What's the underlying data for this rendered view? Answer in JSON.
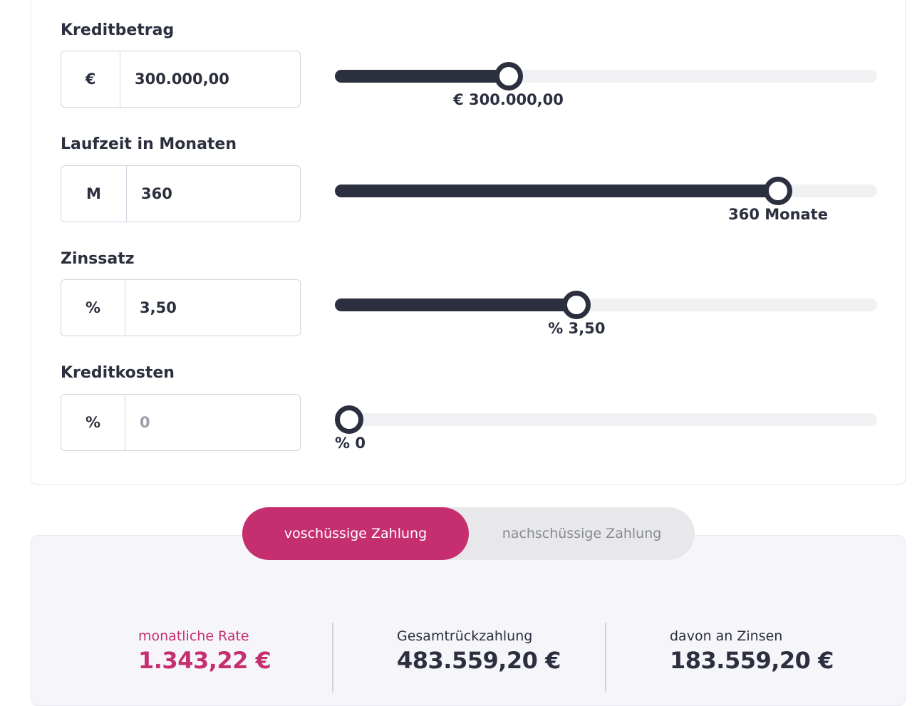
{
  "colors": {
    "accent": "#c62f6f",
    "dark": "#2b2f3e",
    "track": "#f1f1f3",
    "panel_bg": "#f6f6fa",
    "border": "#cdd6df"
  },
  "fields": [
    {
      "label": "Kreditbetrag",
      "prefix": "€",
      "value": "300.000,00",
      "placeholder": "",
      "slider_fraction": 0.31,
      "slider_caption": "€ 300.000,00"
    },
    {
      "label": "Laufzeit in Monaten",
      "prefix": "M",
      "value": "360",
      "placeholder": "",
      "slider_fraction": 0.835,
      "slider_caption": "360 Monate"
    },
    {
      "label": "Zinssatz",
      "prefix": "%",
      "value": "3,50",
      "placeholder": "",
      "slider_fraction": 0.443,
      "slider_caption": "% 3,50"
    },
    {
      "label": "Kreditkosten",
      "prefix": "%",
      "value": "",
      "placeholder": "0",
      "slider_fraction": 0.0,
      "slider_caption": "% 0"
    }
  ],
  "payment_toggle": {
    "options": [
      "voschüssige Zahlung",
      "nachschüssige Zahlung"
    ],
    "selected": "voschüssige Zahlung"
  },
  "results": [
    {
      "label": "monatliche Rate",
      "value": "1.343,22 €"
    },
    {
      "label": "Gesamtrückzahlung",
      "value": "483.559,20 €"
    },
    {
      "label": "davon an Zinsen",
      "value": "183.559,20 €"
    }
  ]
}
